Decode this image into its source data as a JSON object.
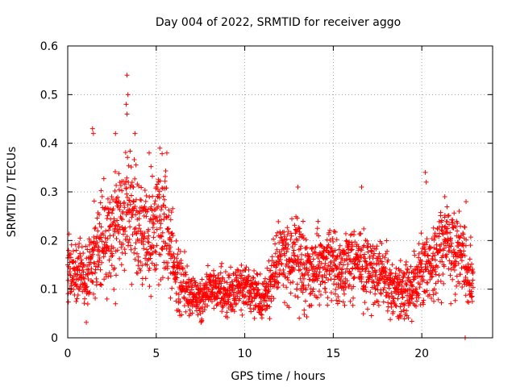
{
  "chart_data": {
    "type": "scatter",
    "title": "Day 004 of 2022, SRMTID for receiver aggo",
    "xlabel": "GPS time / hours",
    "ylabel": "SRMTID / TECUs",
    "xlim": [
      0,
      24
    ],
    "ylim": [
      0,
      0.6
    ],
    "x_ticks": [
      0,
      5,
      10,
      15,
      20
    ],
    "y_ticks": [
      0,
      0.1,
      0.2,
      0.3,
      0.4,
      0.5,
      0.6
    ],
    "x_tick_labels": [
      "0",
      "5",
      "10",
      "15",
      "20"
    ],
    "y_tick_labels": [
      "0",
      "0.1",
      "0.2",
      "0.3",
      "0.4",
      "0.5",
      "0.6"
    ],
    "grid": true,
    "marker": "+",
    "color": "#ff0000",
    "series": [
      {
        "name": "SRMTID",
        "note": "dense scatter of ~3000 points; values estimated as a mean trend with spread and notable outliers",
        "trend": {
          "x": [
            0,
            0.5,
            1,
            1.5,
            2,
            2.5,
            3,
            3.5,
            4,
            4.5,
            5,
            5.5,
            6,
            6.5,
            7,
            7.5,
            8,
            8.5,
            9,
            9.5,
            10,
            10.5,
            11,
            11.5,
            12,
            12.5,
            13,
            13.5,
            14,
            14.5,
            15,
            15.5,
            16,
            16.5,
            17,
            17.5,
            18,
            18.5,
            19,
            19.5,
            20,
            20.5,
            21,
            21.5,
            22,
            22.5,
            22.9
          ],
          "y": [
            0.15,
            0.13,
            0.12,
            0.17,
            0.2,
            0.21,
            0.25,
            0.27,
            0.22,
            0.2,
            0.25,
            0.24,
            0.15,
            0.1,
            0.09,
            0.08,
            0.1,
            0.1,
            0.09,
            0.1,
            0.11,
            0.1,
            0.08,
            0.12,
            0.18,
            0.15,
            0.17,
            0.13,
            0.14,
            0.16,
            0.15,
            0.14,
            0.16,
            0.15,
            0.15,
            0.13,
            0.12,
            0.1,
            0.1,
            0.11,
            0.13,
            0.15,
            0.18,
            0.2,
            0.17,
            0.14,
            0.11
          ],
          "spread": [
            0.04,
            0.04,
            0.04,
            0.06,
            0.07,
            0.07,
            0.08,
            0.07,
            0.07,
            0.07,
            0.07,
            0.07,
            0.05,
            0.04,
            0.03,
            0.03,
            0.03,
            0.03,
            0.03,
            0.03,
            0.03,
            0.03,
            0.03,
            0.04,
            0.05,
            0.05,
            0.06,
            0.05,
            0.05,
            0.05,
            0.05,
            0.05,
            0.05,
            0.05,
            0.05,
            0.04,
            0.04,
            0.04,
            0.04,
            0.04,
            0.05,
            0.05,
            0.06,
            0.06,
            0.06,
            0.05,
            0.04
          ]
        },
        "outliers": [
          {
            "x": 3.35,
            "y": 0.54
          },
          {
            "x": 3.4,
            "y": 0.5
          },
          {
            "x": 3.3,
            "y": 0.48
          },
          {
            "x": 3.35,
            "y": 0.46
          },
          {
            "x": 1.4,
            "y": 0.43
          },
          {
            "x": 1.45,
            "y": 0.42
          },
          {
            "x": 3.8,
            "y": 0.42
          },
          {
            "x": 2.7,
            "y": 0.42
          },
          {
            "x": 5.2,
            "y": 0.39
          },
          {
            "x": 5.6,
            "y": 0.38
          },
          {
            "x": 4.6,
            "y": 0.38
          },
          {
            "x": 20.2,
            "y": 0.34
          },
          {
            "x": 20.25,
            "y": 0.32
          },
          {
            "x": 13.0,
            "y": 0.31
          },
          {
            "x": 16.6,
            "y": 0.31
          },
          {
            "x": 22.5,
            "y": 0.28
          },
          {
            "x": 21.3,
            "y": 0.29
          },
          {
            "x": 10.55,
            "y": 0.04
          },
          {
            "x": 18.7,
            "y": 0.04
          },
          {
            "x": 7.5,
            "y": 0.05
          },
          {
            "x": 22.45,
            "y": 0.0
          },
          {
            "x": 4.7,
            "y": 0.085
          },
          {
            "x": 2.7,
            "y": 0.07
          }
        ]
      }
    ]
  }
}
